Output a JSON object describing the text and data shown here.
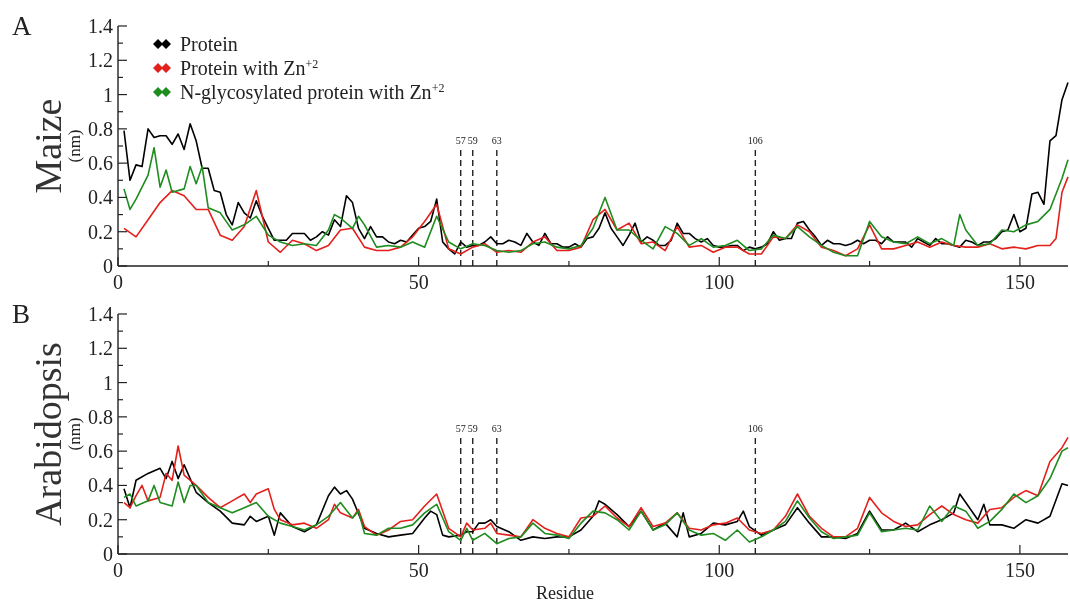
{
  "chart_data": [
    {
      "type": "line",
      "title": "A",
      "ylabel": "Maize (nm)",
      "xlim": [
        0,
        158
      ],
      "ylim": [
        0,
        1.4
      ],
      "xticks": [
        0,
        {
          "value": 25,
          "label": null
        },
        50,
        {
          "value": 75,
          "label": null
        },
        100,
        {
          "value": 125,
          "label": null
        },
        150
      ],
      "yticks": [
        0,
        {
          "value": 0.1,
          "label": null
        },
        0.2,
        {
          "value": 0.3,
          "label": null
        },
        0.4,
        {
          "value": 0.5,
          "label": null
        },
        0.6,
        {
          "value": 0.7,
          "label": null
        },
        0.8,
        {
          "value": 0.9,
          "label": null
        },
        1,
        {
          "value": 1.1,
          "label": null
        },
        1.2,
        {
          "value": 1.3,
          "label": null
        },
        1.4
      ],
      "grid": false,
      "legend": "top left",
      "ref_lines": [
        {
          "axis": "x",
          "value": 57,
          "label": "57",
          "line_style": "dashed"
        },
        {
          "axis": "x",
          "value": 59,
          "label": "59",
          "line_style": "dashed"
        },
        {
          "axis": "x",
          "value": 63,
          "label": "63",
          "line_style": "dashed"
        },
        {
          "axis": "x",
          "value": 106,
          "label": "106",
          "line_style": "dashed"
        }
      ],
      "series": [
        {
          "name": "Protein",
          "color": "#000000",
          "x": [
            1,
            2,
            3,
            4,
            5,
            6,
            7,
            8,
            9,
            10,
            11,
            12,
            13,
            14,
            15,
            16,
            17,
            18,
            19,
            20,
            21,
            22,
            23,
            24,
            25,
            26,
            27,
            28,
            29,
            30,
            31,
            32,
            33,
            34,
            35,
            36,
            37,
            38,
            39,
            40,
            41,
            42,
            43,
            44,
            45,
            46,
            47,
            48,
            49,
            50,
            51,
            52,
            53,
            54,
            55,
            56,
            57,
            58,
            59,
            60,
            61,
            62,
            63,
            64,
            65,
            66,
            67,
            68,
            69,
            70,
            71,
            72,
            73,
            74,
            75,
            76,
            77,
            78,
            79,
            80,
            81,
            82,
            83,
            84,
            85,
            86,
            87,
            88,
            89,
            90,
            91,
            92,
            93,
            94,
            95,
            96,
            97,
            98,
            99,
            100,
            101,
            102,
            103,
            104,
            105,
            106,
            107,
            108,
            109,
            110,
            111,
            112,
            113,
            114,
            115,
            116,
            117,
            118,
            119,
            120,
            121,
            122,
            123,
            124,
            125,
            126,
            127,
            128,
            129,
            130,
            131,
            132,
            133,
            134,
            135,
            136,
            137,
            138,
            139,
            140,
            141,
            142,
            143,
            144,
            145,
            146,
            147,
            148,
            149,
            150,
            151,
            152,
            153,
            154,
            155,
            156,
            157,
            158
          ],
          "values": [
            0.79,
            0.5,
            0.59,
            0.58,
            0.8,
            0.75,
            0.76,
            0.76,
            0.71,
            0.77,
            0.68,
            0.83,
            0.73,
            0.57,
            0.57,
            0.44,
            0.43,
            0.3,
            0.24,
            0.37,
            0.31,
            0.28,
            0.38,
            0.29,
            0.22,
            0.15,
            0.15,
            0.15,
            0.19,
            0.19,
            0.19,
            0.15,
            0.17,
            0.2,
            0.18,
            0.27,
            0.23,
            0.41,
            0.37,
            0.22,
            0.16,
            0.23,
            0.17,
            0.17,
            0.14,
            0.13,
            0.15,
            0.14,
            0.18,
            0.22,
            0.23,
            0.26,
            0.39,
            0.14,
            0.1,
            0.07,
            0.14,
            0.11,
            0.12,
            0.12,
            0.14,
            0.17,
            0.13,
            0.13,
            0.15,
            0.14,
            0.12,
            0.19,
            0.14,
            0.12,
            0.19,
            0.13,
            0.13,
            0.11,
            0.11,
            0.13,
            0.11,
            0.16,
            0.17,
            0.22,
            0.31,
            0.22,
            0.17,
            0.12,
            0.18,
            0.25,
            0.14,
            0.17,
            0.15,
            0.12,
            0.12,
            0.15,
            0.25,
            0.19,
            0.19,
            0.16,
            0.14,
            0.16,
            0.12,
            0.11,
            0.11,
            0.12,
            0.12,
            0.09,
            0.11,
            0.1,
            0.11,
            0.13,
            0.2,
            0.15,
            0.16,
            0.16,
            0.25,
            0.26,
            0.21,
            0.17,
            0.12,
            0.15,
            0.13,
            0.13,
            0.12,
            0.13,
            0.15,
            0.13,
            0.15,
            0.15,
            0.13,
            0.17,
            0.14,
            0.14,
            0.14,
            0.11,
            0.16,
            0.14,
            0.12,
            0.16,
            0.13,
            0.13,
            0.12,
            0.11,
            0.15,
            0.14,
            0.12,
            0.14,
            0.14,
            0.16,
            0.2,
            0.21,
            0.3,
            0.2,
            0.22,
            0.42,
            0.43,
            0.36,
            0.73,
            0.76,
            0.97,
            1.07
          ]
        },
        {
          "name": "Protein with Zn$^{+2}$",
          "color": "#e3201b",
          "x": [
            1,
            3,
            5,
            7,
            9,
            11,
            13,
            15,
            17,
            19,
            21,
            23,
            25,
            27,
            29,
            31,
            33,
            35,
            37,
            39,
            41,
            43,
            45,
            47,
            49,
            51,
            53,
            55,
            57,
            59,
            61,
            63,
            65,
            67,
            69,
            71,
            73,
            75,
            77,
            79,
            81,
            83,
            85,
            87,
            89,
            91,
            93,
            95,
            97,
            99,
            101,
            103,
            105,
            107,
            109,
            111,
            113,
            115,
            117,
            119,
            121,
            123,
            125,
            127,
            129,
            131,
            133,
            135,
            137,
            139,
            141,
            143,
            145,
            147,
            149,
            151,
            153,
            155,
            156,
            157,
            158
          ],
          "values": [
            0.22,
            0.17,
            0.27,
            0.37,
            0.44,
            0.41,
            0.33,
            0.33,
            0.18,
            0.15,
            0.23,
            0.44,
            0.14,
            0.08,
            0.15,
            0.13,
            0.09,
            0.12,
            0.21,
            0.22,
            0.11,
            0.09,
            0.09,
            0.11,
            0.17,
            0.26,
            0.36,
            0.1,
            0.07,
            0.11,
            0.13,
            0.08,
            0.09,
            0.08,
            0.14,
            0.17,
            0.09,
            0.09,
            0.11,
            0.27,
            0.33,
            0.21,
            0.25,
            0.13,
            0.14,
            0.09,
            0.23,
            0.11,
            0.12,
            0.08,
            0.11,
            0.11,
            0.07,
            0.07,
            0.17,
            0.16,
            0.24,
            0.2,
            0.11,
            0.09,
            0.06,
            0.1,
            0.24,
            0.1,
            0.1,
            0.12,
            0.14,
            0.11,
            0.14,
            0.12,
            0.11,
            0.11,
            0.13,
            0.1,
            0.11,
            0.1,
            0.12,
            0.12,
            0.16,
            0.43,
            0.52
          ]
        },
        {
          "name": "N-glycosylated protein with Zn$^{+2}$",
          "color": "#1e8c1e",
          "x": [
            1,
            2,
            3,
            5,
            6,
            7,
            8,
            9,
            11,
            12,
            13,
            14,
            15,
            17,
            19,
            21,
            23,
            25,
            27,
            29,
            31,
            33,
            35,
            36,
            37,
            39,
            40,
            41,
            43,
            45,
            47,
            49,
            51,
            53,
            55,
            57,
            59,
            61,
            63,
            65,
            67,
            69,
            71,
            73,
            75,
            77,
            79,
            81,
            83,
            85,
            87,
            89,
            91,
            93,
            95,
            97,
            99,
            101,
            103,
            105,
            107,
            109,
            111,
            113,
            115,
            117,
            119,
            121,
            123,
            125,
            127,
            129,
            131,
            133,
            135,
            137,
            139,
            140,
            141,
            143,
            145,
            147,
            149,
            151,
            153,
            155,
            157,
            158
          ],
          "values": [
            0.45,
            0.33,
            0.39,
            0.53,
            0.69,
            0.46,
            0.56,
            0.43,
            0.45,
            0.58,
            0.48,
            0.58,
            0.34,
            0.31,
            0.21,
            0.24,
            0.29,
            0.18,
            0.14,
            0.12,
            0.13,
            0.12,
            0.21,
            0.3,
            0.28,
            0.22,
            0.29,
            0.24,
            0.11,
            0.12,
            0.11,
            0.14,
            0.11,
            0.29,
            0.14,
            0.1,
            0.13,
            0.12,
            0.09,
            0.08,
            0.09,
            0.13,
            0.14,
            0.11,
            0.1,
            0.12,
            0.22,
            0.4,
            0.21,
            0.21,
            0.15,
            0.1,
            0.23,
            0.19,
            0.12,
            0.16,
            0.11,
            0.12,
            0.15,
            0.09,
            0.1,
            0.18,
            0.16,
            0.23,
            0.17,
            0.12,
            0.08,
            0.06,
            0.06,
            0.26,
            0.17,
            0.14,
            0.13,
            0.17,
            0.13,
            0.16,
            0.12,
            0.3,
            0.21,
            0.12,
            0.13,
            0.21,
            0.2,
            0.24,
            0.26,
            0.33,
            0.51,
            0.62
          ]
        }
      ]
    },
    {
      "type": "line",
      "title": "B",
      "ylabel": "Arabidopsis (nm)",
      "xlabel": "Residue",
      "xlim": [
        0,
        158
      ],
      "ylim": [
        0,
        1.4
      ],
      "xticks": [
        0,
        {
          "value": 25,
          "label": null
        },
        50,
        {
          "value": 75,
          "label": null
        },
        100,
        {
          "value": 125,
          "label": null
        },
        150
      ],
      "yticks": [
        0,
        {
          "value": 0.1,
          "label": null
        },
        0.2,
        {
          "value": 0.3,
          "label": null
        },
        0.4,
        {
          "value": 0.5,
          "label": null
        },
        0.6,
        {
          "value": 0.7,
          "label": null
        },
        0.8,
        {
          "value": 0.9,
          "label": null
        },
        1,
        {
          "value": 1.1,
          "label": null
        },
        1.2,
        {
          "value": 1.3,
          "label": null
        },
        1.4
      ],
      "grid": false,
      "ref_lines": [
        {
          "axis": "x",
          "value": 57,
          "label": "57",
          "line_style": "dashed"
        },
        {
          "axis": "x",
          "value": 59,
          "label": "59",
          "line_style": "dashed"
        },
        {
          "axis": "x",
          "value": 63,
          "label": "63",
          "line_style": "dashed"
        },
        {
          "axis": "x",
          "value": 106,
          "label": "106",
          "line_style": "dashed"
        }
      ],
      "series": [
        {
          "color": "#000000",
          "x": [
            1,
            2,
            3,
            5,
            7,
            8,
            9,
            10,
            11,
            13,
            15,
            17,
            19,
            21,
            22,
            23,
            25,
            26,
            27,
            29,
            31,
            33,
            35,
            36,
            37,
            38,
            39,
            41,
            43,
            45,
            47,
            49,
            51,
            52,
            53,
            54,
            55,
            57,
            58,
            59,
            60,
            61,
            62,
            63,
            65,
            67,
            69,
            71,
            73,
            75,
            77,
            79,
            80,
            81,
            83,
            85,
            87,
            89,
            91,
            93,
            94,
            95,
            97,
            99,
            101,
            103,
            104,
            105,
            107,
            109,
            111,
            113,
            115,
            117,
            119,
            121,
            123,
            125,
            127,
            129,
            131,
            133,
            135,
            137,
            139,
            140,
            141,
            143,
            144,
            145,
            147,
            149,
            151,
            153,
            155,
            157,
            158
          ],
          "values": [
            0.38,
            0.27,
            0.43,
            0.47,
            0.5,
            0.44,
            0.54,
            0.44,
            0.52,
            0.36,
            0.3,
            0.25,
            0.18,
            0.17,
            0.22,
            0.19,
            0.22,
            0.11,
            0.24,
            0.16,
            0.13,
            0.17,
            0.34,
            0.39,
            0.35,
            0.37,
            0.32,
            0.15,
            0.12,
            0.1,
            0.11,
            0.12,
            0.21,
            0.25,
            0.23,
            0.11,
            0.1,
            0.11,
            0.13,
            0.13,
            0.18,
            0.18,
            0.2,
            0.16,
            0.13,
            0.08,
            0.1,
            0.09,
            0.1,
            0.1,
            0.14,
            0.22,
            0.31,
            0.29,
            0.23,
            0.16,
            0.25,
            0.14,
            0.18,
            0.1,
            0.24,
            0.1,
            0.12,
            0.18,
            0.17,
            0.19,
            0.25,
            0.16,
            0.11,
            0.14,
            0.17,
            0.27,
            0.18,
            0.1,
            0.1,
            0.09,
            0.12,
            0.25,
            0.14,
            0.14,
            0.18,
            0.13,
            0.17,
            0.2,
            0.24,
            0.35,
            0.3,
            0.2,
            0.29,
            0.17,
            0.17,
            0.15,
            0.2,
            0.18,
            0.22,
            0.41,
            0.4
          ]
        },
        {
          "color": "#e3201b",
          "x": [
            1,
            2,
            3,
            4,
            5,
            7,
            8,
            9,
            10,
            11,
            13,
            15,
            17,
            19,
            21,
            22,
            23,
            25,
            26,
            27,
            29,
            31,
            33,
            35,
            36,
            37,
            39,
            40,
            41,
            43,
            45,
            47,
            49,
            51,
            53,
            55,
            57,
            58,
            59,
            61,
            62,
            63,
            65,
            67,
            69,
            71,
            73,
            75,
            77,
            79,
            81,
            83,
            85,
            87,
            89,
            91,
            93,
            95,
            97,
            99,
            101,
            103,
            105,
            107,
            109,
            111,
            113,
            115,
            117,
            119,
            121,
            123,
            125,
            127,
            129,
            131,
            133,
            135,
            137,
            139,
            141,
            143,
            145,
            147,
            149,
            151,
            153,
            155,
            157,
            158
          ],
          "values": [
            0.3,
            0.27,
            0.34,
            0.4,
            0.31,
            0.33,
            0.47,
            0.43,
            0.63,
            0.46,
            0.4,
            0.33,
            0.27,
            0.31,
            0.35,
            0.3,
            0.35,
            0.38,
            0.26,
            0.2,
            0.17,
            0.18,
            0.15,
            0.2,
            0.29,
            0.24,
            0.21,
            0.26,
            0.16,
            0.11,
            0.14,
            0.19,
            0.2,
            0.28,
            0.35,
            0.15,
            0.1,
            0.18,
            0.14,
            0.15,
            0.18,
            0.12,
            0.11,
            0.1,
            0.2,
            0.15,
            0.12,
            0.1,
            0.21,
            0.22,
            0.28,
            0.21,
            0.16,
            0.27,
            0.16,
            0.18,
            0.24,
            0.15,
            0.14,
            0.17,
            0.18,
            0.21,
            0.14,
            0.12,
            0.14,
            0.22,
            0.35,
            0.22,
            0.15,
            0.1,
            0.1,
            0.15,
            0.33,
            0.24,
            0.19,
            0.16,
            0.17,
            0.23,
            0.28,
            0.23,
            0.2,
            0.18,
            0.26,
            0.27,
            0.33,
            0.37,
            0.34,
            0.54,
            0.62,
            0.68
          ]
        },
        {
          "color": "#1e8c1e",
          "x": [
            1,
            2,
            3,
            5,
            6,
            7,
            9,
            10,
            11,
            12,
            13,
            15,
            17,
            19,
            21,
            23,
            25,
            27,
            29,
            31,
            33,
            35,
            37,
            39,
            40,
            41,
            43,
            45,
            47,
            49,
            51,
            53,
            55,
            57,
            58,
            59,
            61,
            63,
            65,
            67,
            69,
            71,
            73,
            75,
            77,
            79,
            81,
            83,
            85,
            87,
            89,
            91,
            93,
            95,
            97,
            99,
            101,
            103,
            105,
            107,
            109,
            111,
            113,
            115,
            117,
            119,
            121,
            123,
            125,
            127,
            129,
            131,
            133,
            135,
            137,
            139,
            141,
            143,
            145,
            147,
            149,
            151,
            153,
            155,
            157,
            158
          ],
          "values": [
            0.33,
            0.35,
            0.28,
            0.31,
            0.4,
            0.3,
            0.28,
            0.42,
            0.3,
            0.4,
            0.4,
            0.3,
            0.27,
            0.24,
            0.27,
            0.3,
            0.22,
            0.18,
            0.16,
            0.14,
            0.17,
            0.22,
            0.3,
            0.21,
            0.25,
            0.12,
            0.11,
            0.15,
            0.15,
            0.17,
            0.24,
            0.29,
            0.13,
            0.08,
            0.15,
            0.08,
            0.12,
            0.06,
            0.09,
            0.1,
            0.18,
            0.12,
            0.11,
            0.09,
            0.18,
            0.25,
            0.24,
            0.2,
            0.14,
            0.25,
            0.14,
            0.17,
            0.24,
            0.14,
            0.11,
            0.12,
            0.08,
            0.14,
            0.07,
            0.1,
            0.14,
            0.19,
            0.31,
            0.21,
            0.13,
            0.09,
            0.1,
            0.11,
            0.24,
            0.13,
            0.14,
            0.15,
            0.14,
            0.28,
            0.19,
            0.28,
            0.25,
            0.15,
            0.19,
            0.26,
            0.35,
            0.3,
            0.34,
            0.44,
            0.6,
            0.62
          ]
        }
      ]
    }
  ]
}
